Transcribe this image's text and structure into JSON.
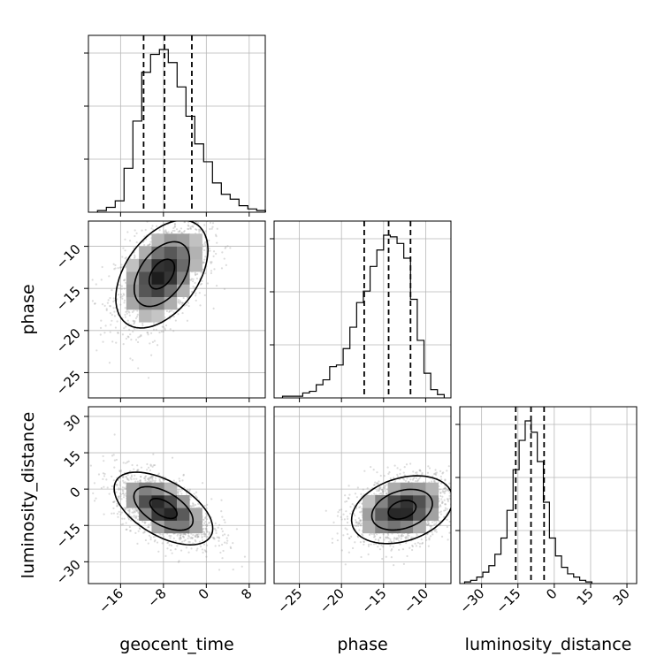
{
  "chart_data": {
    "type": "corner",
    "parameters": [
      "geocent_time",
      "phase",
      "luminosity_distance"
    ],
    "axis_labels": {
      "geocent_time": "geocent_time",
      "phase": "phase",
      "luminosity_distance": "luminosity_distance"
    },
    "ranges": {
      "geocent_time": [
        -22,
        11
      ],
      "phase": [
        -28,
        -7
      ],
      "luminosity_distance": [
        -39,
        34
      ]
    },
    "ticks": {
      "geocent_time": [
        {
          "v": -16,
          "label": "−16"
        },
        {
          "v": -8,
          "label": "−8"
        },
        {
          "v": 0,
          "label": "0"
        },
        {
          "v": 8,
          "label": "8"
        }
      ],
      "phase": [
        {
          "v": -25,
          "label": "−25"
        },
        {
          "v": -20,
          "label": "−20"
        },
        {
          "v": -15,
          "label": "−15"
        },
        {
          "v": -10,
          "label": "−10"
        }
      ],
      "luminosity_distance": [
        {
          "v": -30,
          "label": "−30"
        },
        {
          "v": -15,
          "label": "−15"
        },
        {
          "v": 0,
          "label": "0"
        },
        {
          "v": 15,
          "label": "15"
        },
        {
          "v": 30,
          "label": "30"
        }
      ]
    },
    "quantile_lines": {
      "geocent_time": [
        -11.7,
        -7.8,
        -2.7
      ],
      "phase": [
        -17.3,
        -14.4,
        -11.8
      ],
      "luminosity_distance": [
        -15.9,
        -9.6,
        -4.2
      ]
    },
    "histograms": {
      "geocent_time": {
        "bin_edges": [
          -20.3,
          -18.65,
          -17.0,
          -15.35,
          -13.7,
          -12.05,
          -10.4,
          -8.75,
          -7.1,
          -5.45,
          -3.8,
          -2.15,
          -0.5,
          1.15,
          2.8,
          4.45,
          6.1,
          7.75,
          9.4,
          11.05
        ],
        "counts": [
          1,
          3,
          7,
          27,
          56,
          86,
          97,
          100,
          92,
          77,
          59,
          42,
          31,
          18,
          11,
          8,
          4,
          2,
          1
        ]
      },
      "phase": {
        "bin_edges": [
          -27.0,
          -26.2,
          -25.4,
          -24.6,
          -23.8,
          -23.0,
          -22.2,
          -21.4,
          -20.6,
          -19.8,
          -19.0,
          -18.2,
          -17.4,
          -16.6,
          -15.8,
          -15.0,
          -14.2,
          -13.4,
          -12.6,
          -11.8,
          -11.0,
          -10.2,
          -9.4,
          -8.6,
          -7.8
        ],
        "counts": [
          1,
          1,
          1,
          3,
          4,
          8,
          11,
          19,
          20,
          30,
          43,
          58,
          65,
          80,
          90,
          99,
          98,
          94,
          85,
          60,
          35,
          15,
          5,
          2
        ]
      },
      "luminosity_distance": {
        "bin_edges": [
          -37.0,
          -34.5,
          -32.0,
          -29.5,
          -27.0,
          -24.5,
          -22.0,
          -19.5,
          -17.0,
          -14.5,
          -12.0,
          -9.5,
          -7.0,
          -4.5,
          -2.0,
          0.5,
          3.0,
          5.5,
          8.0,
          10.5,
          13.0,
          15.5
        ],
        "counts": [
          1,
          2,
          4,
          7,
          11,
          18,
          28,
          45,
          70,
          88,
          100,
          93,
          75,
          50,
          28,
          17,
          10,
          6,
          4,
          2,
          1
        ]
      }
    },
    "scatter_summary": {
      "phase_vs_geocent_time": {
        "center": [
          -8.3,
          -13.3
        ],
        "std": [
          4.3,
          3.2
        ],
        "corr": 0.45
      },
      "luminosity_distance_vs_geocent_time": {
        "center": [
          -8.0,
          -8.0
        ],
        "std": [
          4.6,
          7.5
        ],
        "corr": -0.55
      },
      "luminosity_distance_vs_phase": {
        "center": [
          -12.8,
          -8.5
        ],
        "std": [
          3.0,
          7.0
        ],
        "corr": 0.3
      }
    },
    "grid": true,
    "contour_levels": 3
  }
}
